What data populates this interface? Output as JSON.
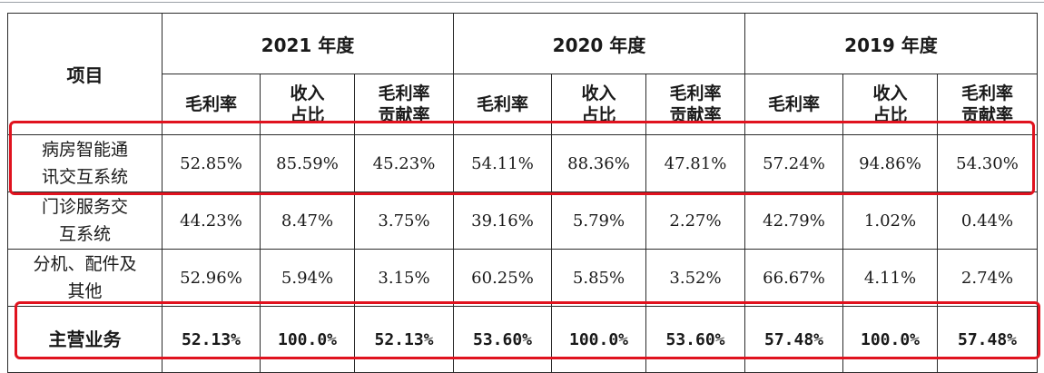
{
  "table": {
    "item_header": "项目",
    "years": [
      "2021 年度",
      "2020 年度",
      "2019 年度"
    ],
    "sub_headers": [
      [
        "毛利率"
      ],
      [
        "收入",
        "占比"
      ],
      [
        "毛利率",
        "贡献率"
      ]
    ],
    "rows": [
      {
        "label": [
          "病房智能通",
          "讯交互系统"
        ],
        "values": [
          "52.85%",
          "85.59%",
          "45.23%",
          "54.11%",
          "88.36%",
          "47.81%",
          "57.24%",
          "94.86%",
          "54.30%"
        ]
      },
      {
        "label": [
          "门诊服务交",
          "互系统"
        ],
        "values": [
          "44.23%",
          "8.47%",
          "3.75%",
          "39.16%",
          "5.79%",
          "2.27%",
          "42.79%",
          "1.02%",
          "0.44%"
        ]
      },
      {
        "label": [
          "分机、配件及",
          "其他"
        ],
        "values": [
          "52.96%",
          "5.94%",
          "3.15%",
          "60.25%",
          "5.85%",
          "3.52%",
          "66.67%",
          "4.11%",
          "2.74%"
        ]
      }
    ],
    "total": {
      "label": "主营业务",
      "values": [
        "52.13%",
        "100.0%",
        "52.13%",
        "53.60%",
        "100.0%",
        "53.60%",
        "57.48%",
        "100.0%",
        "57.48%"
      ]
    }
  },
  "highlight_color": "#e0121e"
}
